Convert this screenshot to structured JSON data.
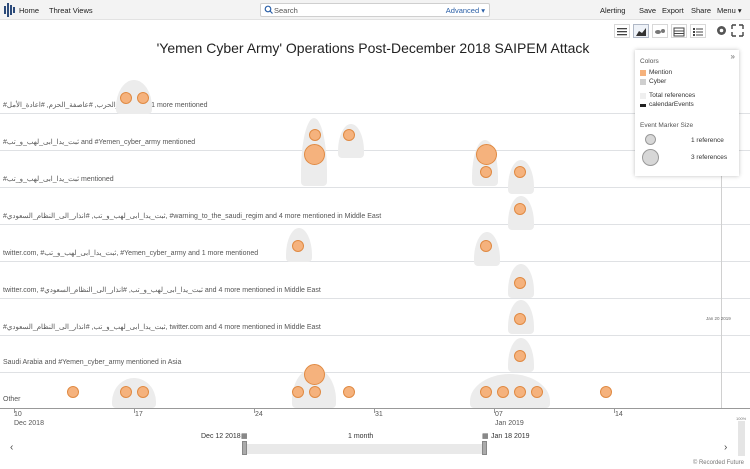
{
  "topbar": {
    "home": "Home",
    "threat_views": "Threat Views",
    "search_placeholder": "Search",
    "advanced": "Advanced",
    "alerting": "Alerting",
    "save": "Save",
    "export": "Export",
    "share": "Share",
    "menu": "Menu"
  },
  "title": "'Yemen Cyber Army' Operations Post-December 2018 SAIPEM Attack",
  "rows": [
    {
      "label": "#محمد_الحرب, #عاصفة_الحزم, #اعادة_الأمل and 1 more mentioned"
    },
    {
      "label": "#ثبت_يدا_ابى_لهب_و_تب and #Yemen_cyber_army mentioned"
    },
    {
      "label": "#ثبت_يدا_ابى_لهب_و_تب mentioned"
    },
    {
      "label": "#ثبت_يدا_ابى_لهب_و_تب, #انذار_الى_النظام_السعودي, #warning_to_the_saudi_regim and 4 more mentioned in Middle East"
    },
    {
      "label": "twitter.com, #ثبت_يدا_ابى_لهب_و_تب, #Yemen_cyber_army and 1 more mentioned"
    },
    {
      "label": "twitter.com, #ثبت_يدا_ابى_لهب_و_تب, #انذار_الى_النظام_السعودي and 4 more mentioned in Middle East"
    },
    {
      "label": "#ثبت_يدا_ابى_لهب_و_تب, #انذار_الى_النظام_السعودي, twitter.com and 4 more mentioned in Middle East"
    },
    {
      "label": "Saudi Arabia and #Yemen_cyber_army mentioned in Asia"
    },
    {
      "label": "Other"
    }
  ],
  "axis": {
    "ticks": [
      "10",
      "17",
      "24",
      "31",
      "07",
      "14"
    ],
    "sub_dec": "Dec 2018",
    "sub_jan": "Jan 2019"
  },
  "marker_label": "Jan 20 2019",
  "legend": {
    "colors_header": "Colors",
    "mention": "Mention",
    "cyber": "Cyber",
    "total_refs": "Total references",
    "calendar_events": "calendarEvents",
    "size_header": "Event Marker Size",
    "one_ref": "1 reference",
    "three_refs": "3 references",
    "mention_color": "#f5b27d",
    "cyber_color": "#cfcfcf"
  },
  "navigator": {
    "start": "Dec 12 2018",
    "span": "1 month",
    "end": "Jan 18 2019",
    "scroll_pct": "100%"
  },
  "footer": "© Recorded Future"
}
